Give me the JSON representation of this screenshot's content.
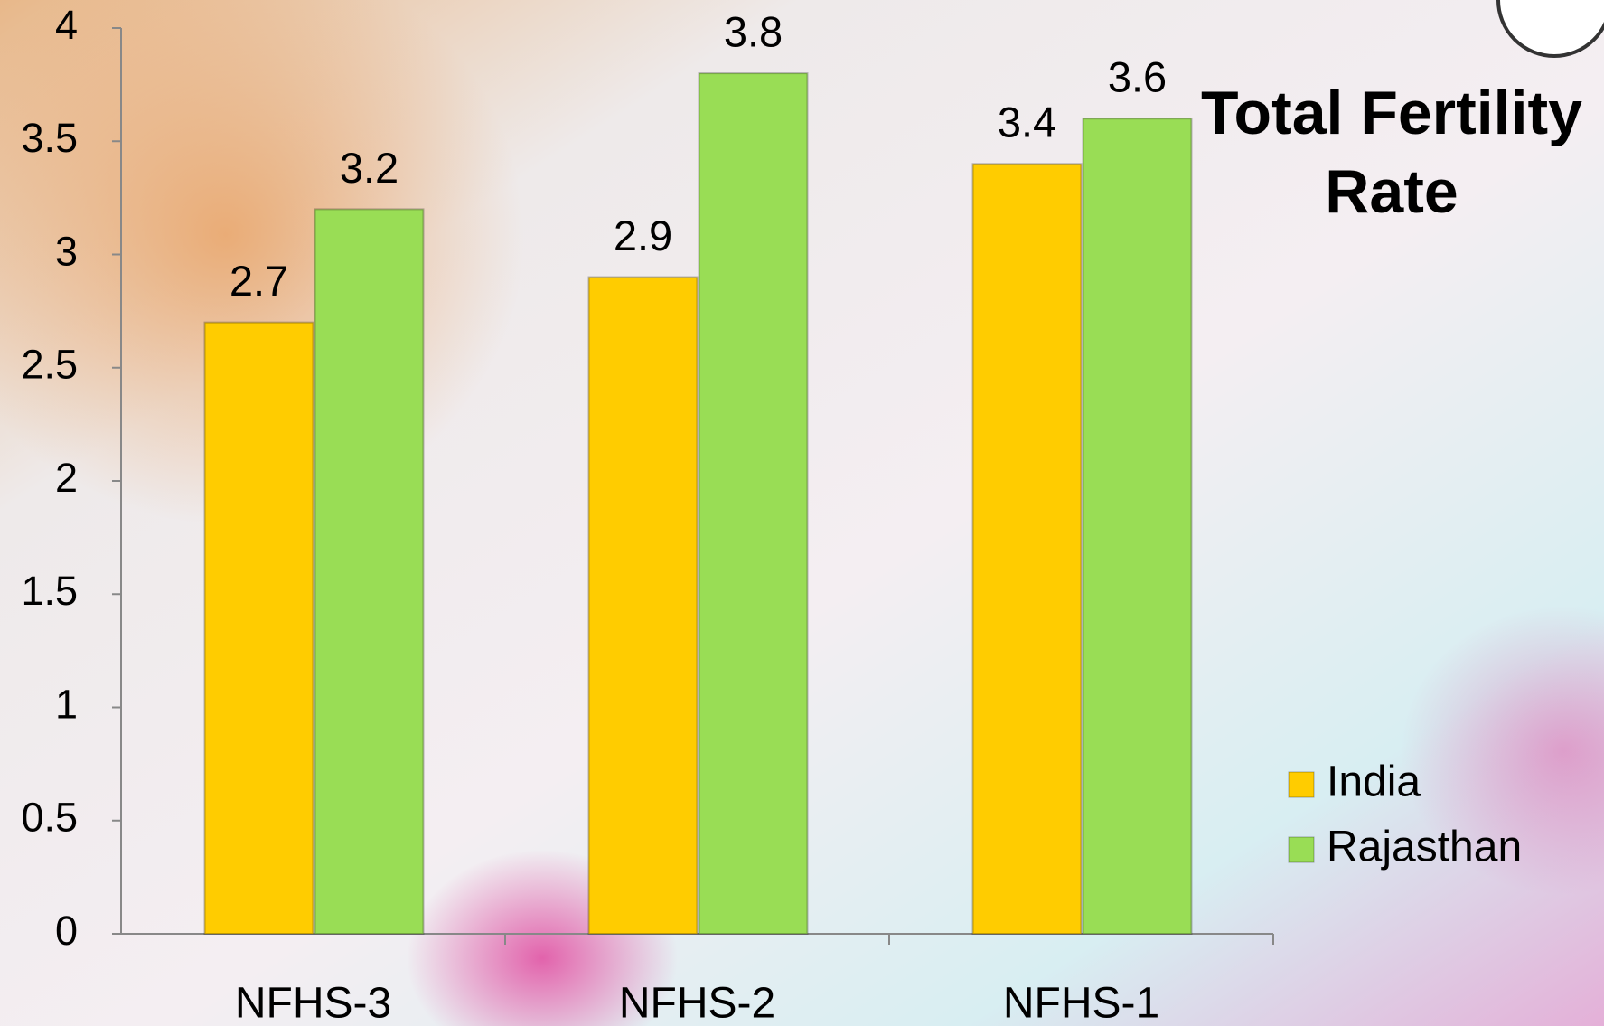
{
  "chart_data": {
    "type": "bar",
    "title": "Total Fertility Rate",
    "categories": [
      "NFHS-3",
      "NFHS-2",
      "NFHS-1"
    ],
    "series": [
      {
        "name": "India",
        "color": "#ffcc00",
        "values": [
          2.7,
          2.9,
          3.4
        ]
      },
      {
        "name": "Rajasthan",
        "color": "#99dd55",
        "values": [
          3.2,
          3.8,
          3.6
        ]
      }
    ],
    "ylim": [
      0,
      4
    ],
    "yticks": [
      0,
      0.5,
      1,
      1.5,
      2,
      2.5,
      3,
      3.5,
      4
    ],
    "grid": false,
    "legend": "right"
  }
}
